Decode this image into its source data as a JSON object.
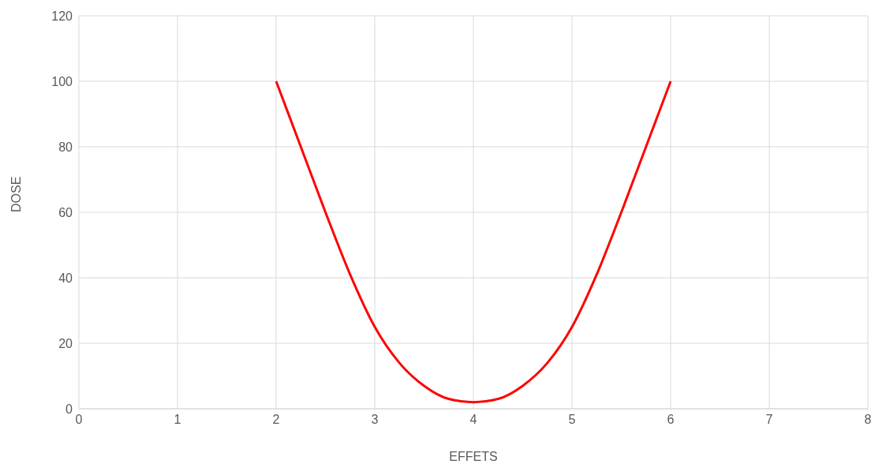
{
  "chart_data": {
    "type": "line",
    "xlabel": "EFFETS",
    "ylabel": "DOSE",
    "xlim": [
      0,
      8
    ],
    "xticks": [
      0,
      1,
      2,
      3,
      4,
      5,
      6,
      7,
      8
    ],
    "ylim": [
      0,
      120
    ],
    "yticks": [
      0,
      20,
      40,
      60,
      80,
      100,
      120
    ],
    "grid": true,
    "legend": false,
    "marker": "none",
    "line_style": "solid",
    "x": [
      2,
      2.25,
      2.5,
      2.75,
      3,
      3.25,
      3.5,
      3.75,
      4,
      4.25,
      4.5,
      4.75,
      5,
      5.25,
      5.5,
      5.75,
      6
    ],
    "series": [
      {
        "color": "#ff0000",
        "values": [
          100,
          80,
          60,
          41,
          25,
          14,
          7,
          3,
          2,
          3,
          7,
          14,
          25,
          41,
          60,
          80,
          100
        ]
      }
    ]
  }
}
